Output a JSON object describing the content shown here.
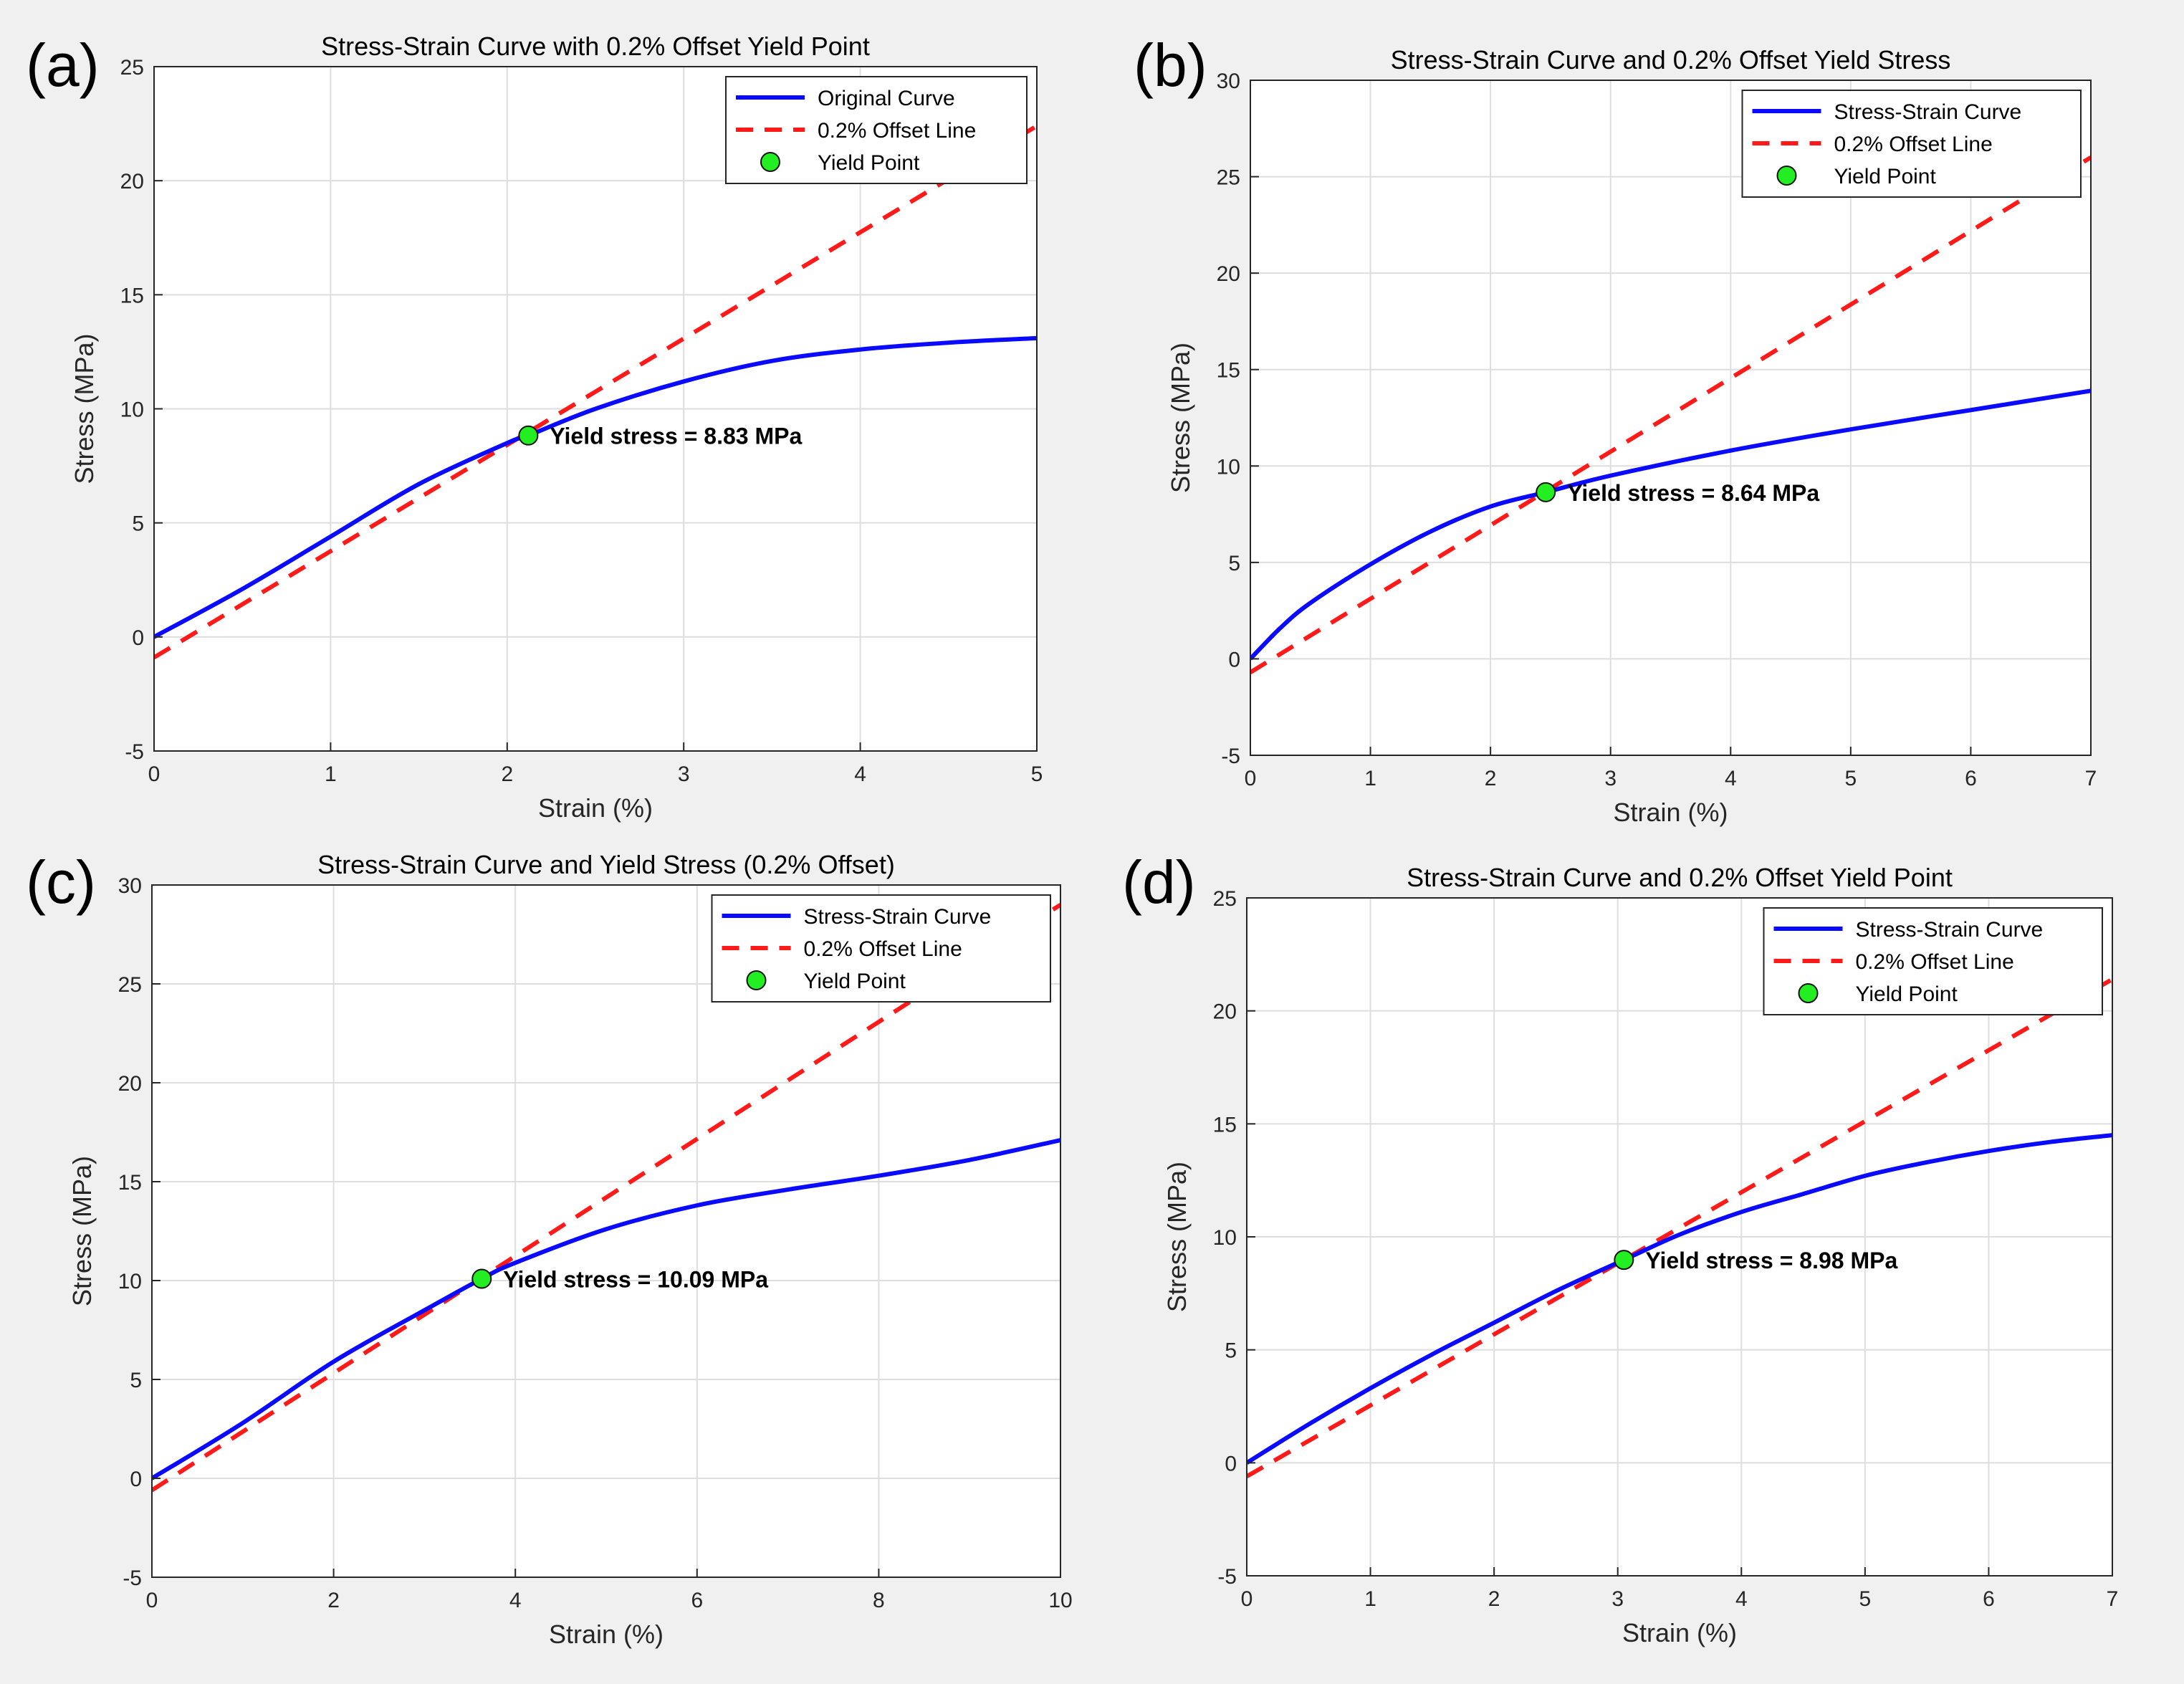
{
  "figure": {
    "background": "#f0f0f0",
    "axes_background": "#ffffff",
    "curve_color": "#0a0aff",
    "offset_color": "#ff1a1a",
    "marker_color": "#22ee22"
  },
  "chart_data": [
    {
      "panel_label": "(a)",
      "type": "line",
      "title": "Stress-Strain Curve with 0.2% Offset Yield Point",
      "xlabel": "Strain (%)",
      "ylabel": "Stress (MPa)",
      "xlim": [
        0,
        5
      ],
      "ylim": [
        -5,
        25
      ],
      "xticks": [
        0,
        1,
        2,
        3,
        4,
        5
      ],
      "yticks": [
        -5,
        0,
        5,
        10,
        15,
        20,
        25
      ],
      "grid": true,
      "legend_position": "top-right",
      "series": [
        {
          "name": "Original Curve",
          "style": "solid",
          "x": [
            0,
            0.5,
            1,
            1.5,
            2,
            2.12,
            2.5,
            3,
            3.5,
            4,
            4.5,
            5
          ],
          "y": [
            0,
            2.1,
            4.4,
            6.7,
            8.5,
            8.83,
            10.0,
            11.2,
            12.1,
            12.6,
            12.9,
            13.1
          ]
        },
        {
          "name": "0.2% Offset Line",
          "style": "dashed",
          "x": [
            0,
            5
          ],
          "y": [
            -0.9,
            22.4
          ]
        },
        {
          "name": "Yield Point",
          "style": "marker",
          "x": [
            2.12
          ],
          "y": [
            8.83
          ]
        }
      ],
      "annotation": {
        "text": "Yield stress = 8.83 MPa",
        "x": 2.12,
        "y": 8.83
      }
    },
    {
      "panel_label": "(b)",
      "type": "line",
      "title": "Stress-Strain Curve and 0.2% Offset Yield Stress",
      "xlabel": "Strain (%)",
      "ylabel": "Stress (MPa)",
      "xlim": [
        0,
        7
      ],
      "ylim": [
        -5,
        30
      ],
      "xticks": [
        0,
        1,
        2,
        3,
        4,
        5,
        6,
        7
      ],
      "yticks": [
        -5,
        0,
        5,
        10,
        15,
        20,
        25,
        30
      ],
      "grid": true,
      "legend_position": "top-right",
      "series": [
        {
          "name": "Stress-Strain Curve",
          "style": "solid",
          "x": [
            0,
            0.25,
            0.5,
            1,
            1.5,
            2,
            2.46,
            3,
            4,
            5,
            6,
            7
          ],
          "y": [
            0,
            1.6,
            2.9,
            4.9,
            6.6,
            7.9,
            8.64,
            9.5,
            10.8,
            11.9,
            12.9,
            13.9
          ]
        },
        {
          "name": "0.2% Offset Line",
          "style": "dashed",
          "x": [
            0,
            7
          ],
          "y": [
            -0.7,
            26.0
          ]
        },
        {
          "name": "Yield Point",
          "style": "marker",
          "x": [
            2.46
          ],
          "y": [
            8.64
          ]
        }
      ],
      "annotation": {
        "text": "Yield stress = 8.64 MPa",
        "x": 2.46,
        "y": 8.64
      }
    },
    {
      "panel_label": "(c)",
      "type": "line",
      "title": "Stress-Strain Curve and Yield Stress (0.2% Offset)",
      "xlabel": "Strain (%)",
      "ylabel": "Stress (MPa)",
      "xlim": [
        0,
        10
      ],
      "ylim": [
        -5,
        30
      ],
      "xticks": [
        0,
        2,
        4,
        6,
        8,
        10
      ],
      "yticks": [
        -5,
        0,
        5,
        10,
        15,
        20,
        25,
        30
      ],
      "grid": true,
      "legend_position": "top-right",
      "series": [
        {
          "name": "Stress-Strain Curve",
          "style": "solid",
          "x": [
            0,
            1,
            2,
            3,
            3.63,
            4,
            5,
            6,
            7,
            8,
            9,
            10
          ],
          "y": [
            0,
            2.8,
            5.9,
            8.5,
            10.09,
            10.9,
            12.6,
            13.8,
            14.6,
            15.3,
            16.1,
            17.1
          ]
        },
        {
          "name": "0.2% Offset Line",
          "style": "dashed",
          "x": [
            0,
            10
          ],
          "y": [
            -0.6,
            29.0
          ]
        },
        {
          "name": "Yield Point",
          "style": "marker",
          "x": [
            3.63
          ],
          "y": [
            10.09
          ]
        }
      ],
      "annotation": {
        "text": "Yield stress = 10.09 MPa",
        "x": 3.63,
        "y": 10.09
      }
    },
    {
      "panel_label": "(d)",
      "type": "line",
      "title": "Stress-Strain Curve and 0.2% Offset Yield Point",
      "xlabel": "Strain (%)",
      "ylabel": "Stress (MPa)",
      "xlim": [
        0,
        7
      ],
      "ylim": [
        -5,
        25
      ],
      "xticks": [
        0,
        1,
        2,
        3,
        4,
        5,
        6,
        7
      ],
      "yticks": [
        -5,
        0,
        5,
        10,
        15,
        20,
        25
      ],
      "grid": true,
      "legend_position": "top-right",
      "series": [
        {
          "name": "Stress-Strain Curve",
          "style": "solid",
          "x": [
            0,
            0.5,
            1,
            1.5,
            2,
            2.5,
            3.05,
            3.5,
            4,
            4.5,
            5,
            5.5,
            6,
            6.5,
            7
          ],
          "y": [
            0,
            1.7,
            3.3,
            4.8,
            6.2,
            7.6,
            8.98,
            10.1,
            11.1,
            11.9,
            12.7,
            13.3,
            13.8,
            14.2,
            14.5
          ]
        },
        {
          "name": "0.2% Offset Line",
          "style": "dashed",
          "x": [
            0,
            7
          ],
          "y": [
            -0.6,
            21.4
          ]
        },
        {
          "name": "Yield Point",
          "style": "marker",
          "x": [
            3.05
          ],
          "y": [
            8.98
          ]
        }
      ],
      "annotation": {
        "text": "Yield stress = 8.98 MPa",
        "x": 3.05,
        "y": 8.98
      }
    }
  ]
}
